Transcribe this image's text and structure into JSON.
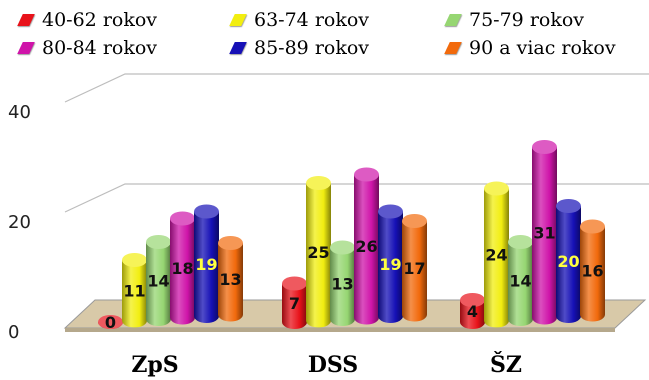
{
  "chart_data": {
    "type": "bar",
    "style": "3d-cylinder",
    "title": "",
    "xlabel": "",
    "ylabel": "",
    "ylim": [
      0,
      40
    ],
    "yticks": [
      "0",
      "20",
      "40"
    ],
    "grid": true,
    "legend_position": "top",
    "categories": [
      "ZpS",
      "DSS",
      "ŠZ"
    ],
    "series": [
      {
        "name": "40-62 rokov",
        "color": "#e8121a",
        "values": [
          0,
          7,
          4
        ]
      },
      {
        "name": "63-74 rokov",
        "color": "#f2ee10",
        "values": [
          11,
          25,
          24
        ]
      },
      {
        "name": "75-79 rokov",
        "color": "#96d672",
        "values": [
          14,
          13,
          14
        ]
      },
      {
        "name": "80-84 rokov",
        "color": "#cf14a9",
        "values": [
          18,
          26,
          31
        ]
      },
      {
        "name": "85-89 rokov",
        "color": "#1610b6",
        "values": [
          19,
          19,
          20
        ]
      },
      {
        "name": "90 a viac rokov",
        "color": "#f26a0c",
        "values": [
          13,
          17,
          16
        ]
      }
    ],
    "data_labels": [
      "0",
      "11",
      "14",
      "18",
      "19",
      "13",
      "7",
      "25",
      "13",
      "26",
      "19",
      "17",
      "4",
      "24",
      "14",
      "31",
      "20",
      "16"
    ]
  }
}
